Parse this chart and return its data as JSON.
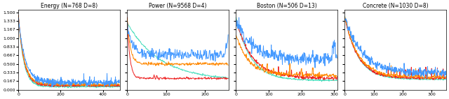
{
  "subplots": [
    {
      "title": "Energy (N=768 D=8)",
      "xlim": [
        0,
        480
      ],
      "ylim": [
        0.0,
        1.55
      ],
      "xticks": [
        0,
        200,
        400
      ],
      "n_steps": 480
    },
    {
      "title": "Power (N=9568 D=4)",
      "xlim": [
        0,
        260
      ],
      "ylim": [
        0.0,
        1.55
      ],
      "xticks": [
        0,
        100,
        200
      ],
      "n_steps": 260
    },
    {
      "title": "Boston (N=506 D=13)",
      "xlim": [
        0,
        310
      ],
      "ylim": [
        0.0,
        1.55
      ],
      "xticks": [
        0,
        100,
        200,
        300
      ],
      "n_steps": 310
    },
    {
      "title": "Concrete (N=1030 D=8)",
      "xlim": [
        0,
        350
      ],
      "ylim": [
        0.0,
        1.55
      ],
      "xticks": [
        0,
        100,
        200,
        300
      ],
      "n_steps": 350
    }
  ],
  "yticks": [
    0.0,
    0.167,
    0.333,
    0.5,
    0.667,
    0.833,
    1.0,
    1.167,
    1.333,
    1.5
  ],
  "ytick_labels": [
    "0.000",
    "0.167",
    "0.333",
    "0.500",
    "0.667",
    "0.833",
    "1.000",
    "1.167",
    "1.333",
    "1.500"
  ],
  "colors": {
    "blue": "#4499FF",
    "red": "#EE2222",
    "orange": "#FF8800",
    "cyan": "#44DDBB"
  },
  "bg": "#F2F2F2",
  "linewidth": 0.7
}
